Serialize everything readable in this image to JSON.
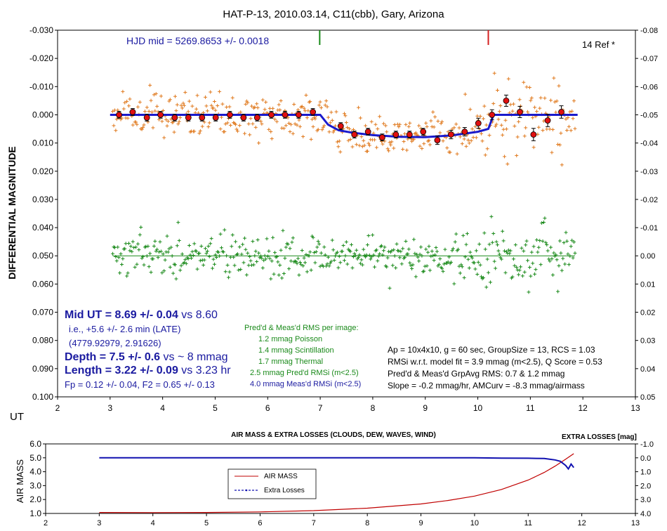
{
  "chart_data": [
    {
      "type": "scatter",
      "title": "HAT-P-13, 2010.03.14, C11(cbb), Gary, Arizona",
      "ylabel": "DIFFERENTIAL MAGNITUDE",
      "xlabel": "UT",
      "xlim": [
        2,
        13
      ],
      "ylim_left": [
        -0.03,
        0.1
      ],
      "ylim_right": [
        -0.08,
        0.05
      ],
      "y_inverted": true,
      "x_ticks": [
        "2",
        "3",
        "4",
        "5",
        "6",
        "7",
        "8",
        "9",
        "10",
        "11",
        "12",
        "13"
      ],
      "y_ticks_left": [
        "-0.030",
        "-0.020",
        "-0.010",
        "0.000",
        "0.010",
        "0.020",
        "0.030",
        "0.040",
        "0.050",
        "0.060",
        "0.070",
        "0.080",
        "0.090",
        "0.100"
      ],
      "y_ticks_right": [
        "-0.08",
        "-0.07",
        "-0.06",
        "-0.05",
        "-0.04",
        "-0.03",
        "-0.02",
        "-0.01",
        "0.00",
        "0.01",
        "0.02",
        "0.03",
        "0.04",
        "0.05"
      ],
      "hjd_label": "HJD mid = 5269.8653 +/- 0.0018",
      "ref_label": "14 Ref *",
      "markers": {
        "predicted_mid_ut": 6.99,
        "measured_mid_ut": 10.2
      },
      "model_line": {
        "x": [
          3.0,
          7.0,
          7.15,
          7.35,
          7.6,
          8.0,
          8.5,
          9.0,
          9.5,
          10.0,
          10.2,
          10.3,
          11.9
        ],
        "y": [
          0.0,
          0.0,
          0.0035,
          0.0055,
          0.0063,
          0.0072,
          0.0078,
          0.0079,
          0.0073,
          0.006,
          0.005,
          0.0,
          0.0
        ]
      },
      "group_averages": {
        "x": [
          3.17,
          3.43,
          3.7,
          3.96,
          4.23,
          4.49,
          4.75,
          5.01,
          5.28,
          5.54,
          5.8,
          6.07,
          6.33,
          6.59,
          6.86,
          7.39,
          7.65,
          7.91,
          8.18,
          8.44,
          8.7,
          8.96,
          9.23,
          9.49,
          9.75,
          10.01,
          10.27,
          10.54,
          10.8,
          11.06,
          11.33,
          11.59
        ],
        "y": [
          0.0,
          -0.001,
          0.001,
          0.0,
          0.001,
          0.001,
          0.001,
          0.001,
          0.0,
          0.001,
          0.001,
          0.0,
          0.0,
          0.0,
          -0.001,
          0.004,
          0.007,
          0.006,
          0.008,
          0.007,
          0.007,
          0.006,
          0.009,
          0.007,
          0.006,
          0.003,
          0.0,
          -0.005,
          -0.001,
          0.007,
          0.002,
          -0.001
        ],
        "err": [
          0.0012,
          0.0012,
          0.0012,
          0.0012,
          0.0012,
          0.0012,
          0.0012,
          0.0012,
          0.0012,
          0.0012,
          0.0012,
          0.0012,
          0.0012,
          0.0012,
          0.0012,
          0.0012,
          0.0012,
          0.0012,
          0.0012,
          0.0012,
          0.0012,
          0.0012,
          0.0015,
          0.0015,
          0.0015,
          0.0018,
          0.0018,
          0.002,
          0.002,
          0.0022,
          0.0022,
          0.0022
        ]
      },
      "raw_series": {
        "name": "target",
        "x_range": [
          3.05,
          11.85
        ],
        "scatter_sd": 0.004,
        "color": "#e07a1f"
      },
      "check_series": {
        "name": "check",
        "offset": 0.05,
        "x_range": [
          3.05,
          11.85
        ],
        "scatter_sd": 0.0035,
        "color": "#1a8a1a"
      },
      "stats_block": {
        "mid_ut": "Mid UT = 8.69 +/- 0.04",
        "mid_ut_vs": " vs 8.60",
        "late": "i.e., +5.6 +/- 2.6 min (LATE)",
        "coords": "(4779.92979, 2.91626)",
        "depth": "Depth = 7.5 +/- 0.6",
        "depth_vs": " vs  ~ 8 mmag",
        "length": "Length = 3.22 +/- 0.09",
        "length_vs": " vs 3.23 hr",
        "fp": "Fp = 0.12 +/- 0.04, F2 = 0.65 +/- 0.13"
      },
      "rms_block": {
        "header": "Pred'd & Meas'd RMS per image:",
        "poisson": "1.2 mmag Poisson",
        "scint": "1.4 mmag Scintillation",
        "thermal": "1.7 mmag Thermal",
        "pred": "2.5 mmag Pred'd  RMSi (m<2.5)",
        "meas": "4.0 mmag Meas'd RMSi (m<2.5)"
      },
      "params_block": {
        "line1": "Ap = 10x4x10, g = 60 sec, GroupSize = 13, RCS = 1.03",
        "line2": "RMSi w.r.t. model fit = 3.9 mmag (m<2.5), Q Score = 0.53",
        "line3": "Pred'd & Meas'd GrpAvg RMS: 0.7 & 1.2 mmag",
        "line4": "Slope = -0.2 mmag/hr, AMCurv = -8.3 mmag/airmass"
      }
    },
    {
      "type": "line",
      "title": "AIR MASS & EXTRA LOSSES (CLOUDS, DEW, WAVES, WIND)",
      "ylabel": "AIR MASS",
      "right_label": "EXTRA LOSSES [mag]",
      "xlim": [
        2,
        13
      ],
      "ylim_left": [
        1.0,
        6.0
      ],
      "ylim_right": [
        -1.0,
        4.0
      ],
      "x_ticks": [
        "2",
        "3",
        "4",
        "5",
        "6",
        "7",
        "8",
        "9",
        "10",
        "11",
        "12",
        "13"
      ],
      "y_ticks_left": [
        "6.0",
        "5.0",
        "4.0",
        "3.0",
        "2.0",
        "1.0"
      ],
      "y_ticks_right": [
        "-1.0",
        "0.0",
        "1.0",
        "2.0",
        "3.0",
        "4.0"
      ],
      "series": [
        {
          "name": "AIR MASS",
          "color": "#c00000",
          "x": [
            3.0,
            4.0,
            5.0,
            6.0,
            7.0,
            8.0,
            9.0,
            9.5,
            10.0,
            10.5,
            11.0,
            11.3,
            11.5,
            11.7,
            11.85
          ],
          "y": [
            1.07,
            1.06,
            1.07,
            1.11,
            1.2,
            1.38,
            1.68,
            1.93,
            2.25,
            2.72,
            3.4,
            3.95,
            4.4,
            4.9,
            5.3
          ]
        },
        {
          "name": "Extra Losses",
          "color": "#1010b0",
          "x": [
            3.0,
            5.0,
            7.0,
            9.0,
            10.0,
            10.5,
            11.0,
            11.3,
            11.5,
            11.6,
            11.7,
            11.75,
            11.8,
            11.85
          ],
          "y": [
            0.0,
            0.0,
            0.0,
            0.0,
            0.0,
            0.02,
            0.03,
            0.05,
            0.15,
            0.25,
            0.55,
            0.8,
            0.45,
            0.7
          ]
        }
      ]
    }
  ]
}
